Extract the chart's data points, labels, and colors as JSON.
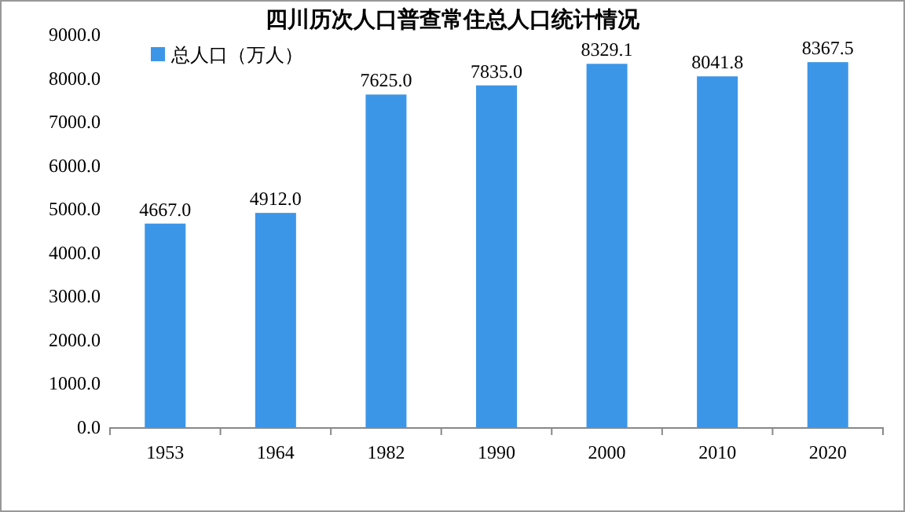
{
  "chart_data": {
    "type": "bar",
    "title": "四川历次人口普查常住总人口统计情况",
    "categories": [
      "1953",
      "1964",
      "1982",
      "1990",
      "2000",
      "2010",
      "2020"
    ],
    "series": [
      {
        "name": "总人口（万人）",
        "color": "#3c96e8",
        "values": [
          4667.0,
          4912.0,
          7625.0,
          7835.0,
          8329.1,
          8041.8,
          8367.5
        ],
        "value_labels": [
          "4667.0",
          "4912.0",
          "7625.0",
          "7835.0",
          "8329.1",
          "8041.8",
          "8367.5"
        ]
      }
    ],
    "ylim": [
      0,
      9000
    ],
    "yticks": [
      {
        "value": 0,
        "label": "0.0"
      },
      {
        "value": 1000,
        "label": "1000.0"
      },
      {
        "value": 2000,
        "label": "2000.0"
      },
      {
        "value": 3000,
        "label": "3000.0"
      },
      {
        "value": 4000,
        "label": "4000.0"
      },
      {
        "value": 5000,
        "label": "5000.0"
      },
      {
        "value": 6000,
        "label": "6000.0"
      },
      {
        "value": 7000,
        "label": "7000.0"
      },
      {
        "value": 8000,
        "label": "8000.0"
      },
      {
        "value": 9000,
        "label": "9000.0"
      }
    ],
    "legend": "top left",
    "grid": false
  }
}
